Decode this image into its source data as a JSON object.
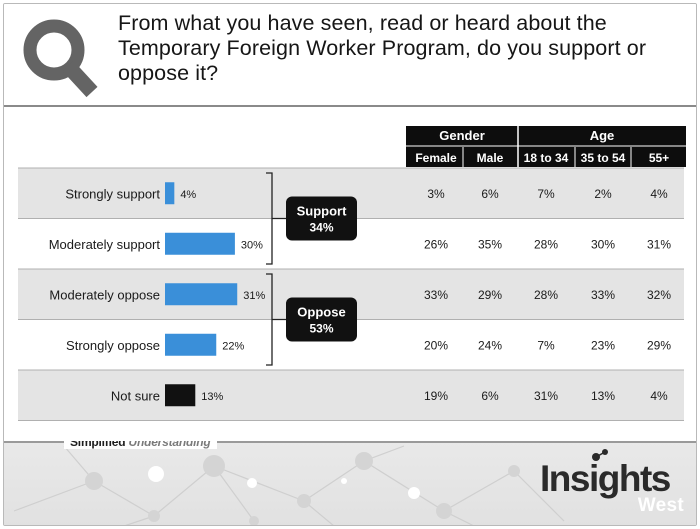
{
  "header": {
    "title": "From what you have seen, read or heard about the Temporary Foreign Worker Program, do you support or oppose it?",
    "icon": "magnifier-icon"
  },
  "chart_data": {
    "type": "bar",
    "categories": [
      "Strongly support",
      "Moderately support",
      "Moderately oppose",
      "Strongly oppose",
      "Not sure"
    ],
    "values": [
      4,
      30,
      31,
      22,
      13
    ],
    "value_labels": [
      "4%",
      "30%",
      "31%",
      "22%",
      "13%"
    ],
    "bar_colors": [
      "#3a8fd9",
      "#3a8fd9",
      "#3a8fd9",
      "#3a8fd9",
      "#111111"
    ],
    "groups": [
      {
        "label_line1": "Support",
        "label_line2": "34%",
        "rows": [
          0,
          1
        ]
      },
      {
        "label_line1": "Oppose",
        "label_line2": "53%",
        "rows": [
          2,
          3
        ]
      }
    ],
    "table": {
      "group_headers": [
        "Gender",
        "Age"
      ],
      "columns": [
        "Female",
        "Male",
        "18 to 34",
        "35 to 54",
        "55+"
      ],
      "rows": [
        [
          "3%",
          "6%",
          "7%",
          "2%",
          "4%"
        ],
        [
          "26%",
          "35%",
          "28%",
          "30%",
          "31%"
        ],
        [
          "33%",
          "29%",
          "28%",
          "33%",
          "32%"
        ],
        [
          "20%",
          "24%",
          "7%",
          "23%",
          "29%"
        ],
        [
          "19%",
          "6%",
          "31%",
          "13%",
          "4%"
        ]
      ]
    }
  },
  "footer": {
    "tagline_a": "Simplified",
    "tagline_b": "Understanding",
    "logo_main": "Insights",
    "logo_sub": "West"
  }
}
